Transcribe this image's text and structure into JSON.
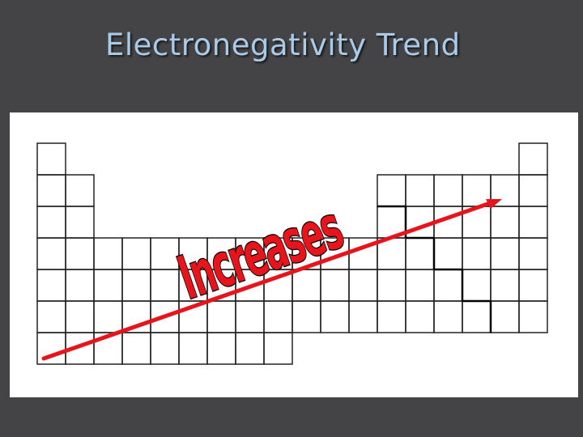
{
  "slide": {
    "title": "Electronegativity Trend"
  },
  "diagram": {
    "label": "Increases",
    "arrow_color": "#e8141c",
    "label_color": "#e8141c",
    "cell_border_color": "#222222",
    "panel_color": "#ffffff",
    "arrow_head_icon": "arrowhead"
  }
}
